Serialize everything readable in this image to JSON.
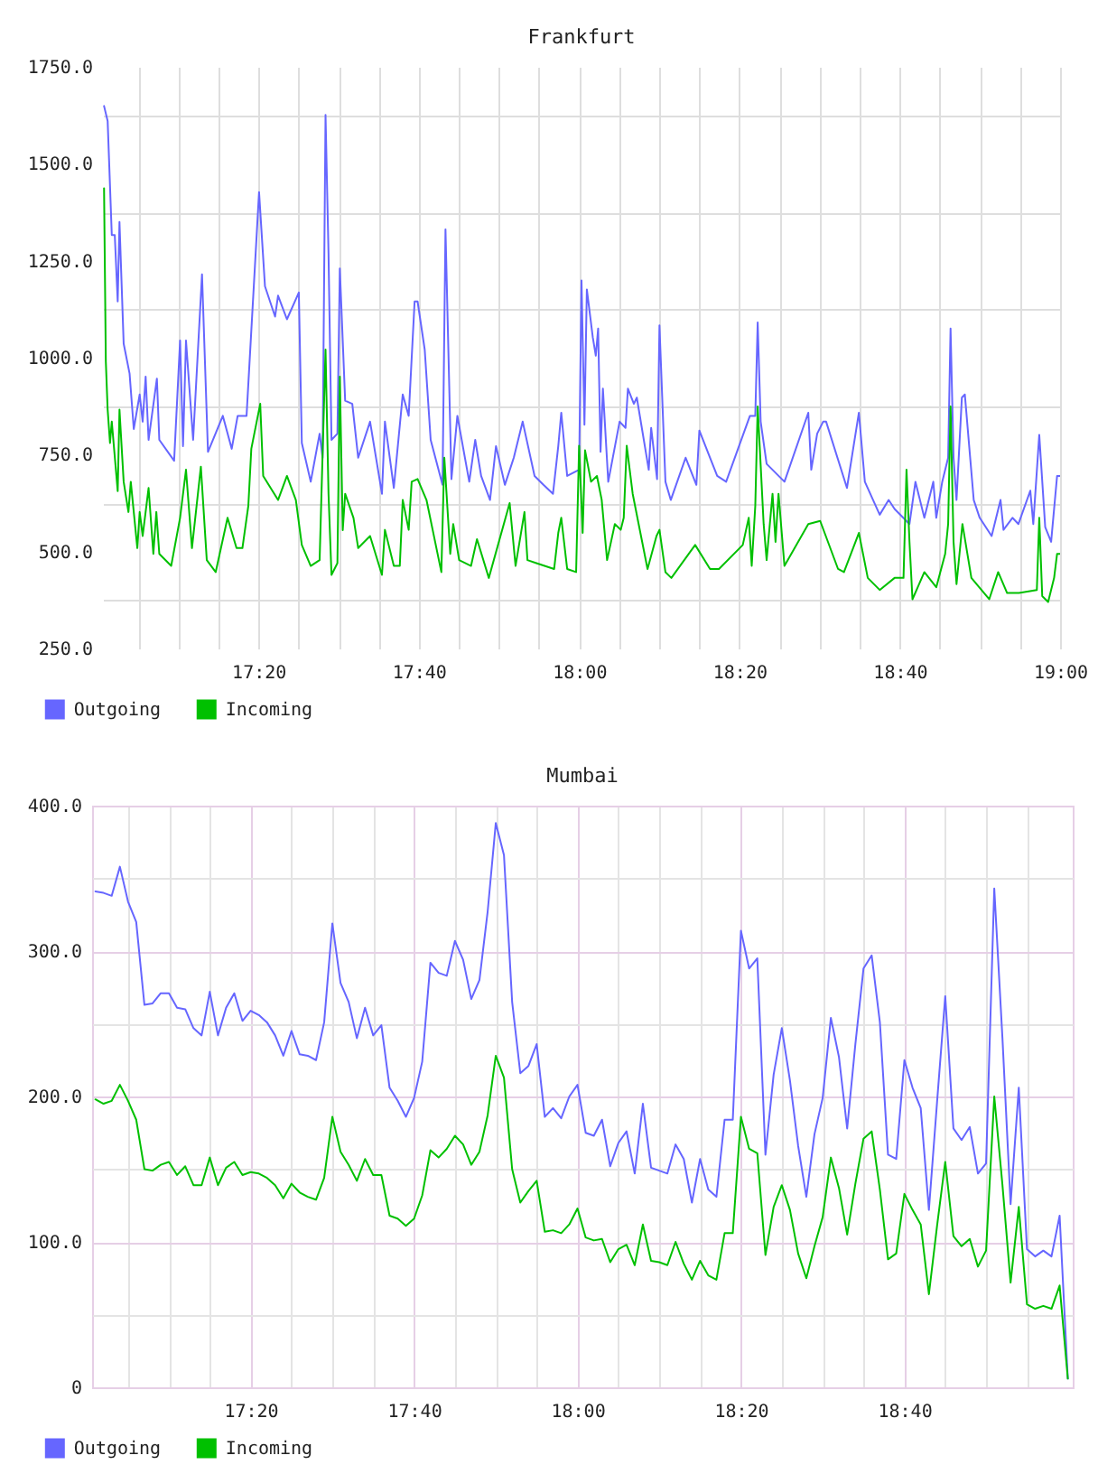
{
  "chart_data": [
    {
      "type": "line",
      "title": "Frankfurt",
      "xlim": [
        17.01,
        19.0
      ],
      "xticks": [
        {
          "value": 17.0833,
          "label": null
        },
        {
          "value": 17.1667,
          "label": null
        },
        {
          "value": 17.25,
          "label": null
        },
        {
          "value": 17.3333,
          "label": "17:20"
        },
        {
          "value": 17.4167,
          "label": null
        },
        {
          "value": 17.5,
          "label": null
        },
        {
          "value": 17.5833,
          "label": null
        },
        {
          "value": 17.6667,
          "label": "17:40"
        },
        {
          "value": 17.75,
          "label": null
        },
        {
          "value": 17.8333,
          "label": null
        },
        {
          "value": 17.9167,
          "label": null
        },
        {
          "value": 18,
          "label": "18:00"
        },
        {
          "value": 18.0833,
          "label": null
        },
        {
          "value": 18.1667,
          "label": null
        },
        {
          "value": 18.25,
          "label": null
        },
        {
          "value": 18.3333,
          "label": "18:20"
        },
        {
          "value": 18.4167,
          "label": null
        },
        {
          "value": 18.5,
          "label": null
        },
        {
          "value": 18.5833,
          "label": null
        },
        {
          "value": 18.6667,
          "label": "18:40"
        },
        {
          "value": 18.75,
          "label": null
        },
        {
          "value": 18.8333,
          "label": null
        },
        {
          "value": 18.9167,
          "label": null
        },
        {
          "value": 19,
          "label": "19:00"
        }
      ],
      "ylim": [
        250,
        1750
      ],
      "yticks": [
        {
          "value": 250,
          "label": "250.0"
        },
        {
          "value": 375,
          "label": null
        },
        {
          "value": 500,
          "label": "500.0"
        },
        {
          "value": 625,
          "label": null
        },
        {
          "value": 750,
          "label": "750.0"
        },
        {
          "value": 875,
          "label": null
        },
        {
          "value": 1000,
          "label": "1000.0"
        },
        {
          "value": 1125,
          "label": null
        },
        {
          "value": 1250,
          "label": "1250.0"
        },
        {
          "value": 1375,
          "label": null
        },
        {
          "value": 1500,
          "label": "1500.0"
        },
        {
          "value": 1625,
          "label": null
        },
        {
          "value": 1750,
          "label": "1750.0"
        }
      ],
      "grid": true,
      "legend": "bottom left",
      "series": [
        {
          "name": "Outgoing",
          "color": "#6666ff",
          "x": [
            17.0123,
            17.0198,
            17.0284,
            17.0346,
            17.0407,
            17.0444,
            17.0531,
            17.0654,
            17.0741,
            17.0864,
            17.0926,
            17.0988,
            17.1049,
            17.1222,
            17.1272,
            17.158,
            17.1704,
            17.1765,
            17.1827,
            17.1975,
            17.216,
            17.2284,
            17.2593,
            17.2778,
            17.2901,
            17.3086,
            17.3346,
            17.3469,
            17.3679,
            17.3741,
            17.3926,
            17.4173,
            17.4235,
            17.442,
            17.4605,
            17.4667,
            17.4728,
            17.479,
            17.4852,
            17.4975,
            17.5025,
            17.5136,
            17.5284,
            17.5407,
            17.5654,
            17.5901,
            17.5963,
            17.6148,
            17.6333,
            17.6457,
            17.658,
            17.6642,
            17.679,
            17.6914,
            17.716,
            17.7222,
            17.7346,
            17.7469,
            17.7716,
            17.784,
            17.7963,
            17.8148,
            17.8272,
            17.8457,
            17.8642,
            17.8827,
            17.9074,
            17.9259,
            17.9457,
            17.9567,
            17.9629,
            17.9752,
            18.0,
            18.005,
            18.0111,
            18.0161,
            18.0285,
            18.0347,
            18.0396,
            18.0446,
            18.0495,
            18.0606,
            18.0842,
            18.0965,
            18.1015,
            18.1139,
            18.12,
            18.1448,
            18.1498,
            18.1621,
            18.1671,
            18.1795,
            18.1906,
            18.2215,
            18.2438,
            18.25,
            18.2871,
            18.3057,
            18.3552,
            18.3663,
            18.3713,
            18.3775,
            18.3899,
            18.427,
            18.4765,
            18.4827,
            18.495,
            18.5074,
            18.5136,
            18.5569,
            18.5817,
            18.5941,
            18.625,
            18.6436,
            18.6559,
            18.6869,
            18.6993,
            18.7178,
            18.7364,
            18.7426,
            18.755,
            18.7673,
            18.7723,
            18.7785,
            18.7847,
            18.7958,
            18.802,
            18.8205,
            18.8329,
            18.8577,
            18.8762,
            18.8824,
            18.901,
            18.9134,
            18.9381,
            18.9443,
            18.9567,
            18.9691,
            18.9814,
            18.9938,
            19.0
          ],
          "values": [
            1649,
            1610,
            1316,
            1316,
            1145,
            1350,
            1036,
            959,
            816,
            905,
            835,
            951,
            788,
            946,
            788,
            734,
            1044,
            772,
            1044,
            788,
            1215,
            757,
            850,
            765,
            850,
            850,
            1427,
            1184,
            1106,
            1160,
            1099,
            1168,
            780,
            680,
            804,
            742,
            1626,
            1269,
            788,
            804,
            1230,
            889,
            881,
            742,
            835,
            649,
            835,
            664,
            905,
            850,
            1145,
            1145,
            1021,
            788,
            672,
            1331,
            687,
            850,
            680,
            788,
            695,
            633,
            772,
            672,
            742,
            835,
            695,
            672,
            649,
            772,
            858,
            695,
            711,
            1199,
            827,
            1176,
            1052,
            1005,
            1075,
            757,
            920,
            680,
            835,
            819,
            920,
            881,
            897,
            711,
            819,
            687,
            1083,
            680,
            633,
            742,
            672,
            812,
            695,
            680,
            850,
            850,
            1091,
            835,
            726,
            680,
            858,
            711,
            804,
            835,
            835,
            664,
            858,
            680,
            595,
            633,
            610,
            571,
            680,
            587,
            680,
            587,
            680,
            742,
            1075,
            742,
            633,
            897,
            905,
            633,
            587,
            540,
            633,
            556,
            587,
            571,
            657,
            571,
            801,
            563,
            525,
            695,
            695
          ]
        },
        {
          "name": "Incoming",
          "color": "#00c000",
          "x": [
            17.0123,
            17.016,
            17.0198,
            17.0247,
            17.0284,
            17.0407,
            17.0444,
            17.0531,
            17.063,
            17.0679,
            17.0815,
            17.0864,
            17.0926,
            17.1049,
            17.1148,
            17.121,
            17.1272,
            17.1519,
            17.1704,
            17.1827,
            17.1951,
            17.2136,
            17.2259,
            17.2444,
            17.2691,
            17.2877,
            17.3,
            17.3123,
            17.3185,
            17.337,
            17.3432,
            17.3741,
            17.3926,
            17.4111,
            17.4235,
            17.442,
            17.4605,
            17.4728,
            17.479,
            17.4852,
            17.4975,
            17.5025,
            17.5086,
            17.5136,
            17.5309,
            17.5407,
            17.5654,
            17.5901,
            17.5963,
            17.6148,
            17.6272,
            17.6333,
            17.6457,
            17.6519,
            17.6642,
            17.6827,
            17.7136,
            17.7198,
            17.7321,
            17.7383,
            17.7506,
            17.7753,
            17.7877,
            17.8123,
            17.8556,
            17.8679,
            17.8864,
            17.8926,
            17.9111,
            17.9481,
            17.9567,
            17.9629,
            17.9752,
            17.9938,
            18.0,
            18.0074,
            18.0124,
            18.0248,
            18.0371,
            18.047,
            18.0582,
            18.0743,
            18.0866,
            18.0928,
            18.099,
            18.1114,
            18.1238,
            18.1423,
            18.1609,
            18.1671,
            18.1795,
            18.1918,
            18.2413,
            18.2723,
            18.2908,
            18.3403,
            18.3527,
            18.3589,
            18.3663,
            18.3713,
            18.3837,
            18.3899,
            18.4022,
            18.4084,
            18.4146,
            18.427,
            18.4765,
            18.5012,
            18.5384,
            18.5507,
            18.5817,
            18.6002,
            18.625,
            18.6559,
            18.6745,
            18.6807,
            18.6869,
            18.6931,
            18.7178,
            18.7426,
            18.7611,
            18.7673,
            18.7723,
            18.7785,
            18.7847,
            18.797,
            18.8156,
            18.8527,
            18.8713,
            18.8899,
            18.9146,
            18.9517,
            18.9567,
            18.9629,
            18.9752,
            18.9876,
            18.9938,
            19.0
          ],
          "values": [
            1437,
            990,
            866,
            780,
            835,
            656,
            866,
            680,
            602,
            680,
            509,
            602,
            540,
            664,
            494,
            602,
            494,
            463,
            587,
            711,
            509,
            719,
            478,
            447,
            587,
            509,
            509,
            618,
            765,
            881,
            695,
            633,
            695,
            633,
            517,
            463,
            478,
            1021,
            649,
            440,
            470,
            951,
            555,
            649,
            587,
            509,
            540,
            440,
            556,
            463,
            463,
            633,
            556,
            680,
            687,
            633,
            447,
            742,
            494,
            571,
            478,
            463,
            532,
            432,
            625,
            463,
            602,
            478,
            470,
            455,
            548,
            587,
            455,
            447,
            773,
            548,
            761,
            680,
            695,
            633,
            478,
            571,
            556,
            587,
            773,
            649,
            571,
            455,
            540,
            556,
            447,
            432,
            517,
            455,
            455,
            517,
            587,
            463,
            618,
            874,
            571,
            478,
            649,
            525,
            649,
            463,
            571,
            579,
            455,
            447,
            548,
            432,
            401,
            432,
            432,
            711,
            525,
            377,
            447,
            408,
            494,
            571,
            874,
            525,
            416,
            571,
            432,
            377,
            447,
            393,
            393,
            401,
            587,
            385,
            370,
            432,
            494,
            494
          ]
        }
      ]
    },
    {
      "type": "line",
      "title": "Mumbai",
      "xlim": [
        17.01,
        19.01
      ],
      "xticks": [
        {
          "value": 17.0833,
          "label": null
        },
        {
          "value": 17.1667,
          "label": null
        },
        {
          "value": 17.25,
          "label": null
        },
        {
          "value": 17.3333,
          "label": "17:20"
        },
        {
          "value": 17.4167,
          "label": null
        },
        {
          "value": 17.5,
          "label": null
        },
        {
          "value": 17.5833,
          "label": null
        },
        {
          "value": 17.6667,
          "label": "17:40"
        },
        {
          "value": 17.75,
          "label": null
        },
        {
          "value": 17.8333,
          "label": null
        },
        {
          "value": 17.9167,
          "label": null
        },
        {
          "value": 18,
          "label": "18:00"
        },
        {
          "value": 18.0833,
          "label": null
        },
        {
          "value": 18.1667,
          "label": null
        },
        {
          "value": 18.25,
          "label": null
        },
        {
          "value": 18.3333,
          "label": "18:20"
        },
        {
          "value": 18.4167,
          "label": null
        },
        {
          "value": 18.5,
          "label": null
        },
        {
          "value": 18.5833,
          "label": null
        },
        {
          "value": 18.6667,
          "label": "18:40"
        },
        {
          "value": 18.75,
          "label": null
        },
        {
          "value": 18.8333,
          "label": null
        },
        {
          "value": 18.9167,
          "label": null
        }
      ],
      "ylim": [
        0,
        400
      ],
      "yticks": [
        0,
        {
          "value": 50,
          "label": null
        },
        {
          "value": 100,
          "label": "100.0"
        },
        {
          "value": 150,
          "label": null
        },
        {
          "value": 200,
          "label": "200.0"
        },
        {
          "value": 250,
          "label": null
        },
        {
          "value": 300,
          "label": "300.0"
        },
        {
          "value": 350,
          "label": null
        },
        {
          "value": 400,
          "label": "400.0"
        }
      ],
      "grid": true,
      "legend": "bottom left",
      "x": [
        17.0167,
        17.0333,
        17.05,
        17.0667,
        17.0833,
        17.1,
        17.1167,
        17.1333,
        17.15,
        17.1667,
        17.1833,
        17.2,
        17.2167,
        17.2333,
        17.25,
        17.2667,
        17.2833,
        17.3,
        17.3167,
        17.3333,
        17.35,
        17.3667,
        17.3833,
        17.4,
        17.4167,
        17.4333,
        17.45,
        17.4667,
        17.4833,
        17.5,
        17.5167,
        17.5333,
        17.55,
        17.5667,
        17.5833,
        17.6,
        17.6167,
        17.6333,
        17.65,
        17.6667,
        17.6833,
        17.7,
        17.7167,
        17.7333,
        17.75,
        17.7667,
        17.7833,
        17.8,
        17.8167,
        17.8333,
        17.85,
        17.8667,
        17.8833,
        17.9,
        17.9167,
        17.9333,
        17.95,
        17.9667,
        17.9833,
        18.0,
        18.0167,
        18.0333,
        18.05,
        18.0667,
        18.0833,
        18.1,
        18.1167,
        18.1333,
        18.15,
        18.1667,
        18.1833,
        18.2,
        18.2167,
        18.2333,
        18.25,
        18.2667,
        18.2833,
        18.3,
        18.3167,
        18.3333,
        18.35,
        18.3667,
        18.3833,
        18.4,
        18.4167,
        18.4333,
        18.45,
        18.4667,
        18.4833,
        18.5,
        18.5167,
        18.5333,
        18.55,
        18.5667,
        18.5833,
        18.6,
        18.6167,
        18.6333,
        18.65,
        18.6667,
        18.6833,
        18.7,
        18.7167,
        18.7333,
        18.75,
        18.7667,
        18.7833,
        18.8,
        18.8167,
        18.8333,
        18.85,
        18.8667,
        18.8833,
        18.9,
        18.9167,
        18.9333,
        18.95,
        18.9667,
        18.9833,
        19.0
      ],
      "series": [
        {
          "name": "Outgoing",
          "color": "#6666ff",
          "values": [
            341,
            340,
            338,
            358,
            334,
            320,
            263,
            264,
            271,
            271,
            261,
            260,
            247,
            242,
            272,
            242,
            261,
            271,
            252,
            259,
            256,
            251,
            242,
            228,
            245,
            229,
            228,
            225,
            251,
            319,
            278,
            265,
            240,
            261,
            242,
            249,
            206,
            197,
            186,
            199,
            224,
            292,
            285,
            283,
            307,
            294,
            267,
            280,
            327,
            388,
            366,
            265,
            216,
            221,
            236,
            186,
            192,
            185,
            200,
            208,
            175,
            173,
            184,
            152,
            168,
            176,
            147,
            195,
            151,
            149,
            147,
            167,
            157,
            127,
            157,
            136,
            131,
            184,
            184,
            314,
            288,
            295,
            160,
            215,
            247,
            211,
            166,
            131,
            174,
            199,
            254,
            227,
            178,
            236,
            288,
            297,
            251,
            160,
            157,
            225,
            206,
            192,
            122,
            196,
            269,
            178,
            170,
            179,
            147,
            154,
            343,
            240,
            126,
            206,
            95,
            90,
            94,
            90,
            118,
            6
          ]
        },
        {
          "name": "Incoming",
          "color": "#00c000",
          "values": [
            198,
            195,
            197,
            208,
            197,
            184,
            150,
            149,
            153,
            155,
            146,
            152,
            139,
            139,
            158,
            139,
            151,
            155,
            146,
            148,
            147,
            144,
            139,
            130,
            140,
            134,
            131,
            129,
            144,
            186,
            162,
            153,
            142,
            157,
            146,
            146,
            118,
            116,
            111,
            116,
            132,
            163,
            158,
            164,
            173,
            167,
            153,
            162,
            187,
            228,
            213,
            150,
            127,
            135,
            142,
            107,
            108,
            106,
            112,
            123,
            103,
            101,
            102,
            86,
            95,
            98,
            84,
            112,
            87,
            86,
            84,
            100,
            85,
            74,
            87,
            77,
            74,
            106,
            106,
            186,
            164,
            161,
            91,
            124,
            139,
            122,
            92,
            75,
            97,
            117,
            158,
            137,
            105,
            140,
            171,
            176,
            136,
            88,
            92,
            133,
            122,
            112,
            64,
            111,
            155,
            104,
            97,
            102,
            83,
            94,
            200,
            139,
            72,
            124,
            57,
            54,
            56,
            54,
            70,
            6
          ]
        }
      ]
    }
  ]
}
